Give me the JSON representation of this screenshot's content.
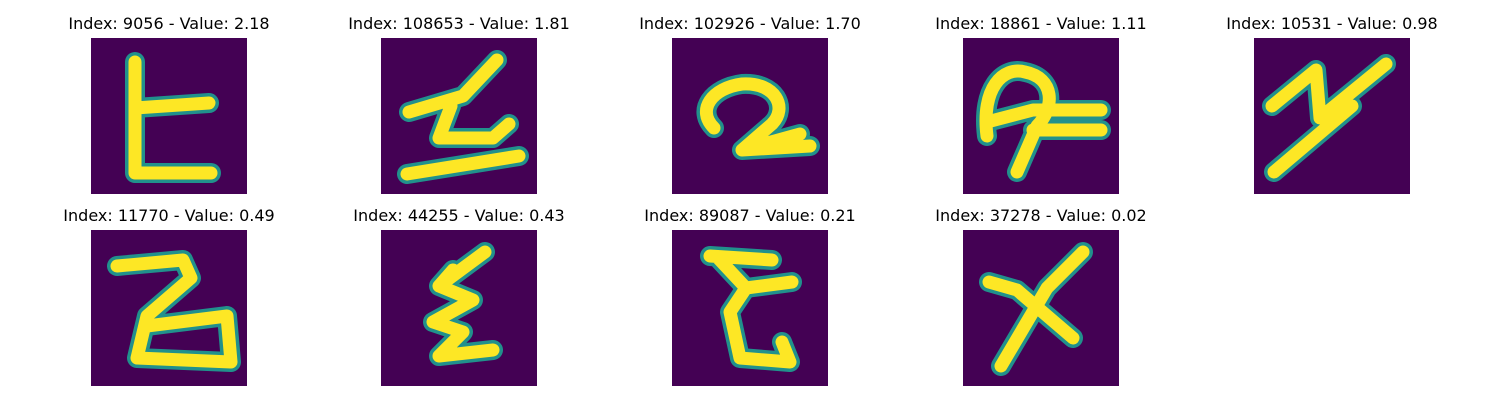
{
  "colors": {
    "background": "#440154",
    "stroke": "#fde725",
    "edge": "#21918c"
  },
  "panels": [
    {
      "title": "Index: 9056 - Value: 2.18",
      "glyph": "ㄴ-like"
    },
    {
      "title": "Index: 108653 - Value: 1.81",
      "glyph": "z-like"
    },
    {
      "title": "Index: 102926 - Value: 1.70",
      "glyph": "2-like"
    },
    {
      "title": "Index: 18861 - Value: 1.11",
      "glyph": "loop"
    },
    {
      "title": "Index: 10531 - Value: 0.98",
      "glyph": "y-like"
    },
    {
      "title": "Index: 11770 - Value: 0.49",
      "glyph": "2-like"
    },
    {
      "title": "Index: 44255 - Value: 0.43",
      "glyph": "e-like"
    },
    {
      "title": "Index: 89087 - Value: 0.21",
      "glyph": "e-like"
    },
    {
      "title": "Index: 37278 - Value: 0.02",
      "glyph": "x-like"
    }
  ]
}
